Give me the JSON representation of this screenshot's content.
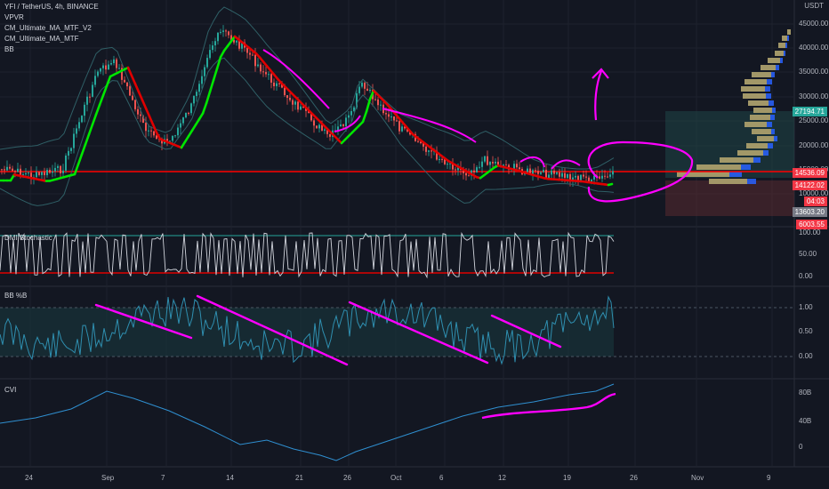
{
  "header": {
    "symbol_line": "YFI / TetherUS, 4h, BINANCE",
    "indicators": [
      "VPVR",
      "CM_Ultimate_MA_MTF_V2",
      "CM_Ultimate_MA_MTF",
      "BB"
    ]
  },
  "price_axis": {
    "currency": "USDT",
    "ticks": [
      "45000.00",
      "40000.00",
      "35000.00",
      "30000.00",
      "25000.00",
      "20000.00",
      "15000.00",
      "10000.00"
    ],
    "tags": [
      {
        "text": "27194.71",
        "color": "#26a69a"
      },
      {
        "text": "14536.09",
        "color": "#f23645"
      },
      {
        "text": "14122.02",
        "color": "#f23645"
      },
      {
        "text": "04:03",
        "color": "#f23645"
      },
      {
        "text": "13603.20",
        "color": "#787b86"
      },
      {
        "text": "6003.55",
        "color": "#f23645"
      }
    ]
  },
  "panes": {
    "stoch": {
      "title": "DMI Stochastic",
      "ticks": [
        "100.00",
        "50.00",
        "0.00"
      ]
    },
    "bbp": {
      "title": "BB %B",
      "ticks": [
        "1.00",
        "0.50",
        "0.00"
      ]
    },
    "cvi": {
      "title": "CVI",
      "ticks": [
        "80B",
        "40B",
        "0"
      ]
    }
  },
  "time_axis": [
    "24",
    "Sep",
    "7",
    "14",
    "21",
    "26",
    "Oct",
    "6",
    "12",
    "19",
    "26",
    "Nov",
    "9"
  ],
  "colors": {
    "background": "#131722",
    "candle_up": "#26a69a",
    "candle_down": "#ef5350",
    "ma_up": "#00e600",
    "ma_down": "#e00000",
    "support_line": "#ff0000",
    "annotation": "#ff00ff"
  }
}
